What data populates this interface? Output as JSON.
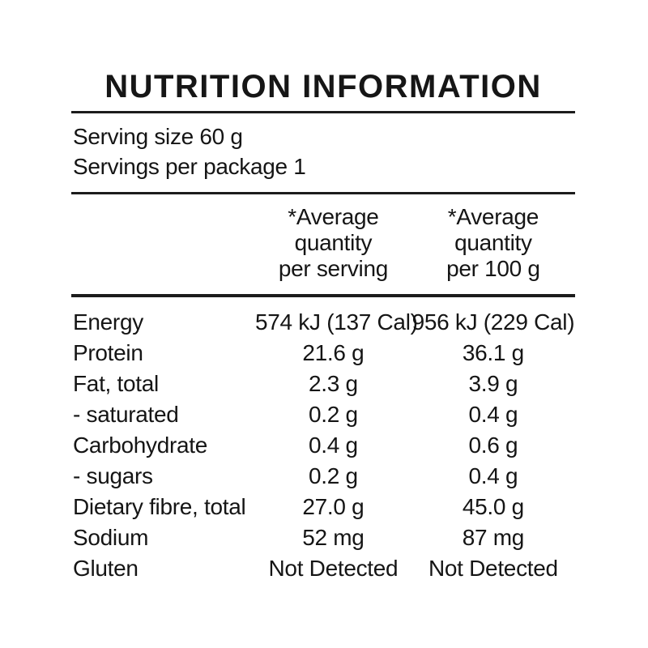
{
  "panel": {
    "title": "NUTRITION INFORMATION",
    "serving": {
      "size_line": "Serving size 60 g",
      "package_line": "Servings per package 1"
    },
    "columns": {
      "per_serving": [
        "*Average",
        "quantity",
        "per serving"
      ],
      "per_100g": [
        "*Average",
        "quantity",
        "per 100 g"
      ]
    },
    "rows": [
      {
        "label": "Energy",
        "per_serving": "574 kJ (137 Cal)",
        "per_100g": "956 kJ (229 Cal)"
      },
      {
        "label": "Protein",
        "per_serving": "21.6 g",
        "per_100g": "36.1 g"
      },
      {
        "label": "Fat, total",
        "per_serving": "2.3 g",
        "per_100g": "3.9 g"
      },
      {
        "label": "- saturated",
        "per_serving": "0.2 g",
        "per_100g": "0.4 g"
      },
      {
        "label": "Carbohydrate",
        "per_serving": "0.4 g",
        "per_100g": "0.6 g"
      },
      {
        "label": "- sugars",
        "per_serving": "0.2 g",
        "per_100g": "0.4 g"
      },
      {
        "label": "Dietary fibre, total",
        "per_serving": "27.0 g",
        "per_100g": "45.0 g"
      },
      {
        "label": "Sodium",
        "per_serving": "52 mg",
        "per_100g": "87 mg"
      },
      {
        "label": "Gluten",
        "per_serving": "Not Detected",
        "per_100g": "Not Detected"
      }
    ],
    "colors": {
      "text": "#151515",
      "background": "#ffffff",
      "rule": "#1c1c1c"
    }
  }
}
